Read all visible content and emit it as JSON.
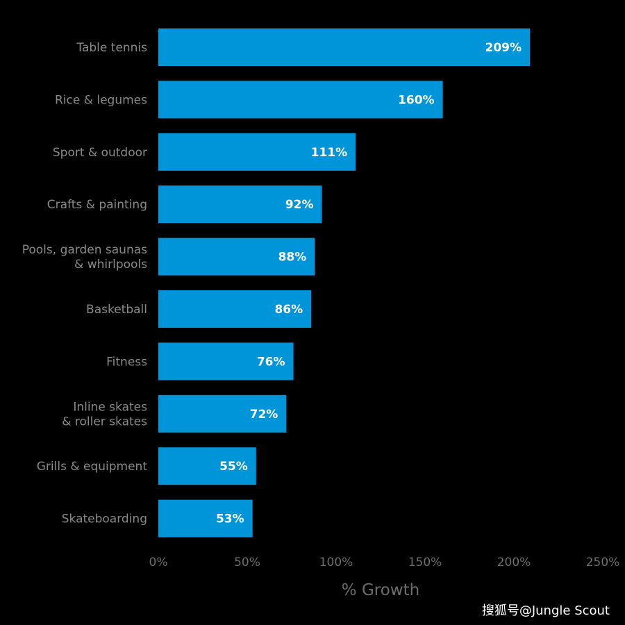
{
  "chart_data": {
    "type": "bar",
    "orientation": "horizontal",
    "categories": [
      [
        "Table tennis"
      ],
      [
        "Rice & legumes"
      ],
      [
        "Sport & outdoor"
      ],
      [
        "Crafts & painting"
      ],
      [
        "Pools, garden saunas",
        "& whirlpools"
      ],
      [
        "Basketball"
      ],
      [
        "Fitness"
      ],
      [
        "Inline skates",
        "& roller skates"
      ],
      [
        "Grills & equipment"
      ],
      [
        "Skateboarding"
      ]
    ],
    "values": [
      209,
      160,
      111,
      92,
      88,
      86,
      76,
      72,
      55,
      53
    ],
    "value_labels": [
      "209%",
      "160%",
      "111%",
      "92%",
      "88%",
      "86%",
      "76%",
      "72%",
      "55%",
      "53%"
    ],
    "xlabel": "% Growth",
    "xlim": [
      0,
      250
    ],
    "x_ticks": [
      0,
      50,
      100,
      150,
      200,
      250
    ],
    "x_tick_labels": [
      "0%",
      "50%",
      "100%",
      "150%",
      "200%",
      "250%"
    ],
    "bar_color": "#0095d9",
    "background_color": "#000000",
    "grid": false,
    "legend": "none"
  },
  "watermark": "搜狐号@Jungle Scout"
}
